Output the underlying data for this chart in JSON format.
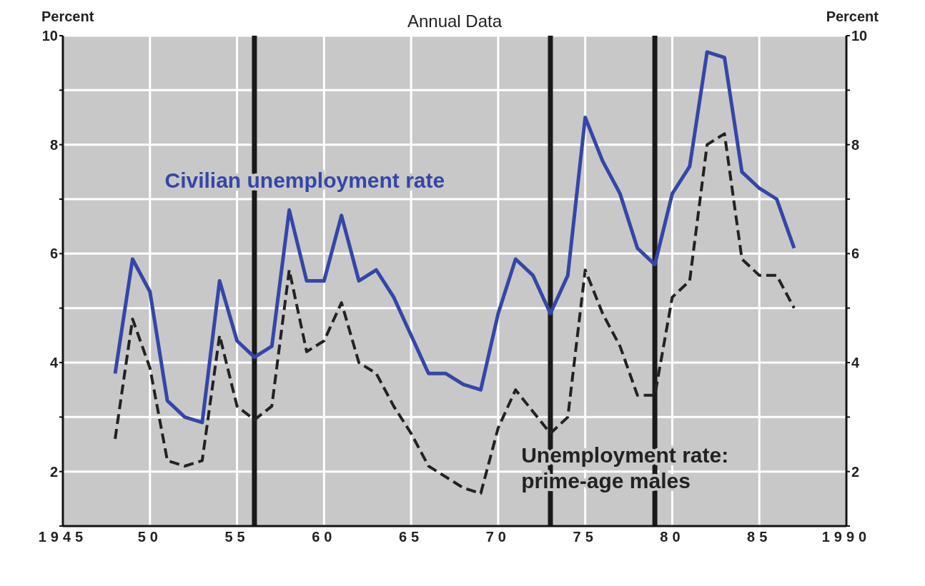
{
  "chart_data": {
    "type": "line",
    "title": "Annual Data",
    "ylabel": "Percent",
    "y2label": "Percent",
    "x": [
      1948,
      1949,
      1950,
      1951,
      1952,
      1953,
      1954,
      1955,
      1956,
      1957,
      1958,
      1959,
      1960,
      1961,
      1962,
      1963,
      1964,
      1965,
      1966,
      1967,
      1968,
      1969,
      1970,
      1971,
      1972,
      1973,
      1974,
      1975,
      1976,
      1977,
      1978,
      1979,
      1980,
      1981,
      1982,
      1983,
      1984,
      1985,
      1986,
      1987
    ],
    "series": [
      {
        "name": "Civilian unemployment rate",
        "color": "#3546a8",
        "line_style": "solid",
        "values": [
          3.8,
          5.9,
          5.3,
          3.3,
          3.0,
          2.9,
          5.5,
          4.4,
          4.1,
          4.3,
          6.8,
          5.5,
          5.5,
          6.7,
          5.5,
          5.7,
          5.2,
          4.5,
          3.8,
          3.8,
          3.6,
          3.5,
          4.9,
          5.9,
          5.6,
          4.9,
          5.6,
          8.5,
          7.7,
          7.1,
          6.1,
          5.8,
          7.1,
          7.6,
          9.7,
          9.6,
          7.5,
          7.2,
          7.0,
          6.1
        ]
      },
      {
        "name": "Unemployment rate: prime-age males",
        "color": "#222222",
        "line_style": "dashed",
        "values": [
          2.6,
          4.8,
          3.9,
          2.2,
          2.1,
          2.2,
          4.5,
          3.2,
          2.95,
          3.2,
          5.7,
          4.2,
          4.4,
          5.1,
          4.0,
          3.8,
          3.2,
          2.7,
          2.1,
          1.9,
          1.7,
          1.6,
          2.8,
          3.5,
          3.1,
          2.7,
          3.0,
          5.7,
          4.9,
          4.3,
          3.4,
          3.4,
          5.2,
          5.5,
          8.0,
          8.2,
          5.9,
          5.6,
          5.6,
          5.0
        ]
      }
    ],
    "xlim": [
      1945,
      1990
    ],
    "xticks": [
      {
        "value": 1945,
        "label": "1945"
      },
      {
        "value": 1950,
        "label": "50"
      },
      {
        "value": 1955,
        "label": "55"
      },
      {
        "value": 1960,
        "label": "60"
      },
      {
        "value": 1965,
        "label": "65"
      },
      {
        "value": 1970,
        "label": "70"
      },
      {
        "value": 1975,
        "label": "75"
      },
      {
        "value": 1980,
        "label": "80"
      },
      {
        "value": 1985,
        "label": "85"
      },
      {
        "value": 1990,
        "label": "1990"
      }
    ],
    "ylim": [
      1,
      10
    ],
    "yticks": [
      {
        "value": 1,
        "label": null
      },
      2,
      {
        "value": 3,
        "label": null
      },
      4,
      {
        "value": 5,
        "label": null
      },
      6,
      {
        "value": 7,
        "label": null
      },
      8,
      {
        "value": 9,
        "label": null
      },
      10
    ],
    "y2lim": [
      1,
      10
    ],
    "y2ticks": [
      {
        "value": 1,
        "label": null
      },
      2,
      {
        "value": 3,
        "label": null
      },
      4,
      {
        "value": 5,
        "label": null
      },
      6,
      {
        "value": 7,
        "label": null
      },
      8,
      {
        "value": 9,
        "label": null
      },
      10
    ],
    "ref_lines": [
      {
        "axis": "x",
        "value": 1956,
        "color": "#1a1a1a"
      },
      {
        "axis": "x",
        "value": 1973,
        "color": "#1a1a1a"
      },
      {
        "axis": "x",
        "value": 1979,
        "color": "#1a1a1a"
      }
    ],
    "grid": true
  }
}
